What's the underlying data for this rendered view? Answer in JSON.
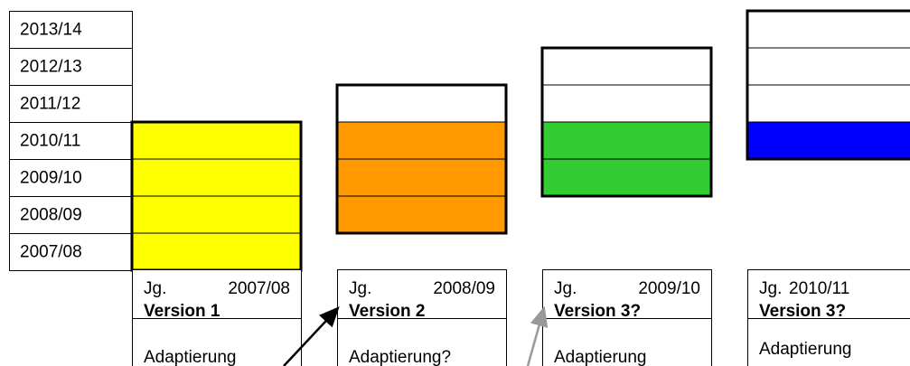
{
  "years": [
    "2013/14",
    "2012/13",
    "2011/12",
    "2010/11",
    "2009/10",
    "2008/09",
    "2007/08"
  ],
  "versions": [
    {
      "label": "Jg.",
      "year": "2007/08",
      "version": "Version 1",
      "note": "Adaptierung"
    },
    {
      "label": "Jg.",
      "year": "2008/09",
      "version": "Version 2",
      "note": "Adaptierung?"
    },
    {
      "label": "Jg.",
      "year": "2009/10",
      "version": "Version 3?",
      "note": "Adaptierung"
    },
    {
      "label": "Jg.",
      "year": "2010/11",
      "version": "Version 3?",
      "note": "Adaptierung"
    }
  ]
}
